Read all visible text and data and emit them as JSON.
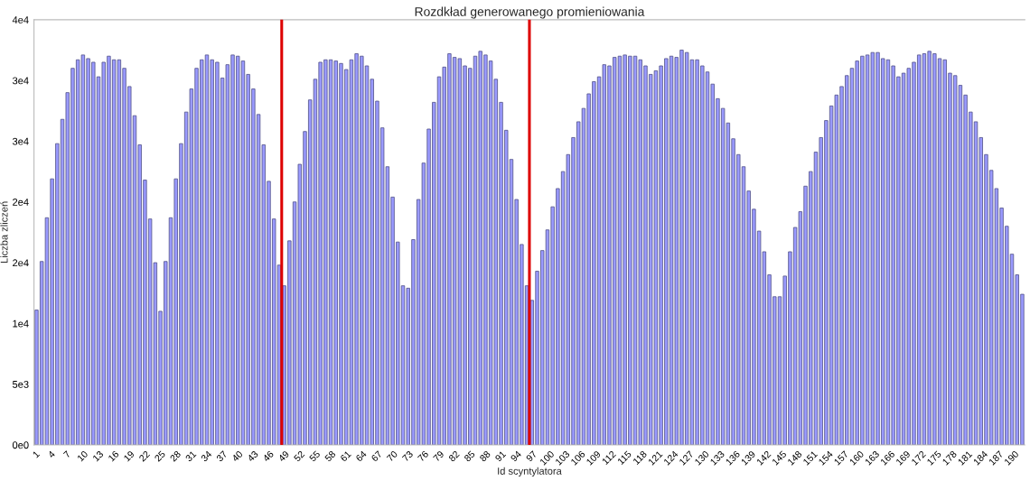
{
  "chart_data": {
    "type": "bar",
    "title": "Rozdkład generowanego promieniowania",
    "xlabel": "Id scyntylatora",
    "ylabel": "Liczba zliczeń",
    "x": [
      1,
      2,
      3,
      4,
      5,
      6,
      7,
      8,
      9,
      10,
      11,
      12,
      13,
      14,
      15,
      16,
      17,
      18,
      19,
      20,
      21,
      22,
      23,
      24,
      25,
      26,
      27,
      28,
      29,
      30,
      31,
      32,
      33,
      34,
      35,
      36,
      37,
      38,
      39,
      40,
      41,
      42,
      43,
      44,
      45,
      46,
      47,
      48,
      49,
      50,
      51,
      52,
      53,
      54,
      55,
      56,
      57,
      58,
      59,
      60,
      61,
      62,
      63,
      64,
      65,
      66,
      67,
      68,
      69,
      70,
      71,
      72,
      73,
      74,
      75,
      76,
      77,
      78,
      79,
      80,
      81,
      82,
      83,
      84,
      85,
      86,
      87,
      88,
      89,
      90,
      91,
      92,
      93,
      94,
      95,
      96,
      97,
      98,
      99,
      100,
      101,
      102,
      103,
      104,
      105,
      106,
      107,
      108,
      109,
      110,
      111,
      112,
      113,
      114,
      115,
      116,
      117,
      118,
      119,
      120,
      121,
      122,
      123,
      124,
      125,
      126,
      127,
      128,
      129,
      130,
      131,
      132,
      133,
      134,
      135,
      136,
      137,
      138,
      139,
      140,
      141,
      142,
      143,
      144,
      145,
      146,
      147,
      148,
      149,
      150,
      151,
      152,
      153,
      154,
      155,
      156,
      157,
      158,
      159,
      160,
      161,
      162,
      163,
      164,
      165,
      166,
      167,
      168,
      169,
      170,
      171,
      172,
      173,
      174,
      175,
      176,
      177,
      178,
      179,
      180,
      181,
      182,
      183,
      184,
      185,
      186,
      187,
      188,
      189,
      190,
      191,
      192
    ],
    "series": [
      {
        "color": "#9a9aff",
        "values": [
          11100,
          15100,
          18700,
          21900,
          24800,
          26800,
          29000,
          31000,
          31700,
          32100,
          31800,
          31500,
          30300,
          31500,
          32000,
          31700,
          31700,
          31000,
          29500,
          27100,
          24700,
          21800,
          18600,
          15000,
          11000,
          15100,
          18700,
          21900,
          24800,
          27400,
          29300,
          31000,
          31700,
          32100,
          31700,
          31500,
          30200,
          31300,
          32100,
          32000,
          31600,
          30500,
          29300,
          27200,
          24700,
          21700,
          18600,
          14800,
          13100,
          16800,
          20000,
          23100,
          25800,
          28400,
          30100,
          31500,
          31700,
          31700,
          31600,
          31400,
          30900,
          31700,
          32200,
          32000,
          31200,
          30100,
          28300,
          26100,
          22900,
          20400,
          16700,
          13100,
          12900,
          16900,
          20200,
          23200,
          26000,
          28200,
          30300,
          31100,
          32200,
          31900,
          31800,
          31200,
          31000,
          32000,
          32400,
          32100,
          31600,
          30100,
          28200,
          25900,
          23500,
          20200,
          16500,
          13100,
          11900,
          14300,
          16000,
          17700,
          19600,
          21100,
          22500,
          23900,
          25300,
          26600,
          27700,
          28900,
          29900,
          30300,
          31300,
          31200,
          31900,
          32000,
          32100,
          32000,
          32000,
          31700,
          31200,
          30500,
          30800,
          31200,
          31800,
          32000,
          31900,
          32500,
          32300,
          31700,
          31700,
          31200,
          30700,
          29700,
          28500,
          27700,
          26500,
          25200,
          23900,
          22900,
          20900,
          19400,
          17600,
          15900,
          14000,
          12200,
          12200,
          13900,
          15900,
          17900,
          19200,
          21300,
          22500,
          24100,
          25300,
          26700,
          27900,
          28800,
          29500,
          30400,
          31000,
          31600,
          32000,
          32100,
          32300,
          32300,
          31800,
          31700,
          31200,
          30300,
          30600,
          31000,
          31500,
          32100,
          32200,
          32400,
          32200,
          31800,
          31700,
          30600,
          30400,
          29600,
          28800,
          27400,
          26600,
          25300,
          23900,
          22600,
          21100,
          19500,
          18000,
          15700,
          14000,
          12400
        ]
      }
    ],
    "xlim": [
      0.5,
      192.5
    ],
    "xticks": [
      1,
      4,
      7,
      10,
      13,
      16,
      19,
      22,
      25,
      28,
      31,
      34,
      37,
      40,
      43,
      46,
      49,
      52,
      55,
      58,
      61,
      64,
      67,
      70,
      73,
      76,
      79,
      82,
      85,
      88,
      91,
      94,
      97,
      100,
      103,
      106,
      109,
      112,
      115,
      118,
      121,
      124,
      127,
      130,
      133,
      136,
      139,
      142,
      145,
      148,
      151,
      154,
      157,
      160,
      163,
      166,
      169,
      172,
      175,
      178,
      181,
      184,
      187,
      190
    ],
    "ylim": [
      0,
      35000
    ],
    "yticks": [
      {
        "value": 0,
        "label": "0e0"
      },
      {
        "value": 5000,
        "label": "5e3"
      },
      {
        "value": 10000,
        "label": "1e4"
      },
      {
        "value": 15000,
        "label": "2e4"
      },
      {
        "value": 20000,
        "label": "2e4"
      },
      {
        "value": 25000,
        "label": "3e4"
      },
      {
        "value": 30000,
        "label": "3e4"
      },
      {
        "value": 35000,
        "label": "4e4"
      }
    ],
    "ref_lines": [
      {
        "axis": "x",
        "value": 48.5,
        "color": "#dd0000"
      },
      {
        "axis": "x",
        "value": 96.5,
        "color": "#dd0000"
      }
    ],
    "grid": false
  }
}
